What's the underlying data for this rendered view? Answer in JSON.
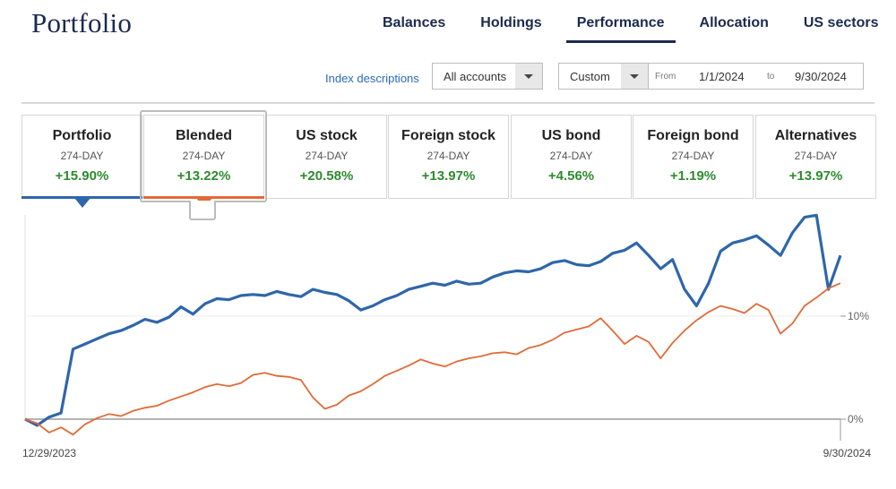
{
  "header": {
    "title": "Portfolio",
    "tabs": [
      {
        "label": "Balances",
        "active": false
      },
      {
        "label": "Holdings",
        "active": false
      },
      {
        "label": "Performance",
        "active": true
      },
      {
        "label": "Allocation",
        "active": false
      },
      {
        "label": "US sectors",
        "active": false
      }
    ]
  },
  "controls": {
    "index_link": "Index descriptions",
    "accounts_select": "All accounts",
    "range_select": "Custom",
    "from_label": "From",
    "from_date": "1/1/2024",
    "to_label": "to",
    "to_date": "9/30/2024"
  },
  "cards": [
    {
      "name": "Portfolio",
      "period": "274-DAY",
      "return": "+15.90%",
      "color": "#2f66aa",
      "selected": true
    },
    {
      "name": "Blended",
      "period": "274-DAY",
      "return": "+13.22%",
      "color": "#e06b37",
      "selected": true
    },
    {
      "name": "US stock",
      "period": "274-DAY",
      "return": "+20.58%"
    },
    {
      "name": "Foreign stock",
      "period": "274-DAY",
      "return": "+13.97%"
    },
    {
      "name": "US bond",
      "period": "274-DAY",
      "return": "+4.56%"
    },
    {
      "name": "Foreign bond",
      "period": "274-DAY",
      "return": "+1.19%"
    },
    {
      "name": "Alternatives",
      "period": "274-DAY",
      "return": "+13.97%"
    }
  ],
  "chart_data": {
    "type": "line",
    "x_start": "12/29/2023",
    "x_end": "9/30/2024",
    "y_ticks": [
      0,
      10
    ],
    "y_tick_labels": [
      "0%",
      "10%"
    ],
    "ylim": [
      -2.5,
      20
    ],
    "series": [
      {
        "name": "Portfolio",
        "color": "#2f66aa",
        "values": [
          0,
          -0.6,
          0.2,
          0.6,
          6.8,
          7.3,
          7.8,
          8.3,
          8.6,
          9.1,
          9.7,
          9.4,
          9.9,
          10.9,
          10.2,
          11.2,
          11.7,
          11.6,
          12.0,
          12.1,
          12.0,
          12.4,
          12.1,
          11.9,
          12.6,
          12.3,
          12.1,
          11.5,
          10.6,
          11.0,
          11.6,
          12.0,
          12.6,
          12.9,
          13.2,
          13.0,
          13.4,
          13.1,
          13.2,
          13.8,
          14.2,
          14.4,
          14.3,
          14.6,
          15.2,
          15.4,
          15.0,
          14.9,
          15.3,
          16.1,
          16.4,
          17.1,
          15.9,
          14.6,
          15.5,
          12.6,
          11.0,
          13.2,
          16.3,
          17.1,
          17.4,
          17.8,
          16.9,
          15.9,
          18.1,
          19.6,
          19.8,
          12.6,
          15.9
        ]
      },
      {
        "name": "Blended",
        "color": "#e06b37",
        "values": [
          0,
          -0.4,
          -1.3,
          -0.8,
          -1.5,
          -0.5,
          0.1,
          0.5,
          0.3,
          0.8,
          1.1,
          1.3,
          1.8,
          2.2,
          2.6,
          3.1,
          3.4,
          3.2,
          3.5,
          4.3,
          4.5,
          4.2,
          4.1,
          3.8,
          2.1,
          1.0,
          1.4,
          2.3,
          2.7,
          3.4,
          4.2,
          4.7,
          5.2,
          5.8,
          5.4,
          5.1,
          5.6,
          5.9,
          6.1,
          6.4,
          6.5,
          6.3,
          6.9,
          7.2,
          7.7,
          8.4,
          8.7,
          9.0,
          9.8,
          8.6,
          7.3,
          8.1,
          7.5,
          5.9,
          7.4,
          8.6,
          9.6,
          10.4,
          11.0,
          10.7,
          10.3,
          11.2,
          10.6,
          8.3,
          9.3,
          11.0,
          11.8,
          12.7,
          13.2
        ]
      }
    ]
  }
}
